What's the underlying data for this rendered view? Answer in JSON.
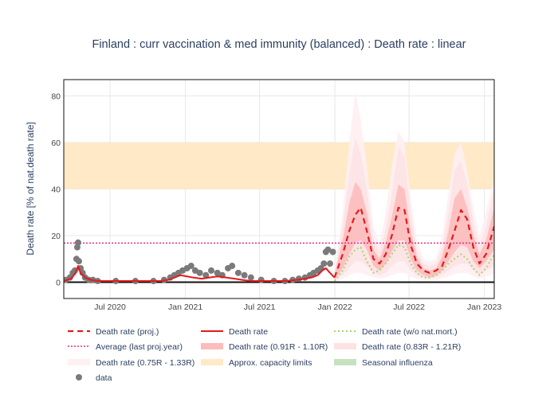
{
  "chart_data": {
    "type": "line",
    "title": "Finland : curr vaccination & med immunity (balanced) : Death rate : linear",
    "ylabel": "Death rate [% of nat.death rate]",
    "xlabel": "",
    "x_range": [
      "2020-03-10",
      "2023-01-25"
    ],
    "ylim": [
      -7,
      87
    ],
    "x_ticks": [
      {
        "date": "2020-07-01",
        "label": "Jul 2020"
      },
      {
        "date": "2021-01-01",
        "label": "Jan 2021"
      },
      {
        "date": "2021-07-01",
        "label": "Jul 2021"
      },
      {
        "date": "2022-01-01",
        "label": "Jan 2022"
      },
      {
        "date": "2022-07-01",
        "label": "Jul 2022"
      },
      {
        "date": "2023-01-01",
        "label": "Jan 2023"
      }
    ],
    "y_ticks": [
      0,
      20,
      40,
      60,
      80
    ],
    "grid": true,
    "legend_position": "bottom",
    "capacity_band": [
      40,
      60
    ],
    "average_last_proj_year": 16.8,
    "projection_start": "2021-12-31",
    "colors": {
      "proj": "#e41a1c",
      "death_rate": "#e41a1c",
      "wo_natmort": "#a6d96a",
      "average": "#e7298a",
      "band_a": "#fdbbbb",
      "band_b": "#fde2e4",
      "band_c": "#fff0f2",
      "capacity": "#ffe9c7",
      "seasonal_flu": "#c6e2bf",
      "data": "#7a7a7a"
    },
    "series": {
      "death_rate": {
        "name": "Death rate",
        "x": [
          "2020-03-10",
          "2020-03-28",
          "2020-04-08",
          "2020-04-14",
          "2020-04-20",
          "2020-05-01",
          "2020-05-15",
          "2020-06-01",
          "2020-07-01",
          "2020-09-01",
          "2020-11-01",
          "2020-11-20",
          "2020-12-05",
          "2020-12-20",
          "2021-01-05",
          "2021-01-20",
          "2021-02-10",
          "2021-03-01",
          "2021-03-20",
          "2021-04-10",
          "2021-05-01",
          "2021-05-20",
          "2021-06-10",
          "2021-07-01",
          "2021-08-01",
          "2021-09-01",
          "2021-10-01",
          "2021-10-20",
          "2021-11-05",
          "2021-11-20",
          "2021-12-01",
          "2021-12-10",
          "2021-12-20",
          "2021-12-31"
        ],
        "y": [
          0.5,
          1.5,
          4,
          7,
          4,
          2,
          1,
          0.5,
          0.5,
          0.5,
          0.5,
          1,
          2,
          3,
          2.5,
          2,
          1.5,
          2,
          2.5,
          2,
          1.5,
          1,
          0.5,
          0.5,
          0.5,
          0.5,
          1,
          1.5,
          2,
          3,
          5,
          6,
          4,
          2
        ]
      },
      "data_points": {
        "name": "data",
        "x": [
          "2020-03-15",
          "2020-03-25",
          "2020-04-01",
          "2020-04-06",
          "2020-04-10",
          "2020-04-12",
          "2020-04-14",
          "2020-04-16",
          "2020-04-20",
          "2020-04-25",
          "2020-05-01",
          "2020-05-10",
          "2020-05-20",
          "2020-06-01",
          "2020-07-15",
          "2020-09-01",
          "2020-10-15",
          "2020-11-10",
          "2020-11-25",
          "2020-12-05",
          "2020-12-15",
          "2020-12-25",
          "2021-01-05",
          "2021-01-15",
          "2021-01-25",
          "2021-02-05",
          "2021-02-20",
          "2021-03-05",
          "2021-03-20",
          "2021-04-01",
          "2021-04-15",
          "2021-04-25",
          "2021-05-10",
          "2021-05-25",
          "2021-06-10",
          "2021-07-05",
          "2021-08-05",
          "2021-09-01",
          "2021-09-20",
          "2021-10-05",
          "2021-10-20",
          "2021-11-01",
          "2021-11-10",
          "2021-11-20",
          "2021-11-28",
          "2021-12-05",
          "2021-12-10",
          "2021-12-15",
          "2021-12-20",
          "2021-12-27"
        ],
        "y": [
          1,
          2,
          4,
          5,
          10,
          15,
          17,
          9,
          6,
          4,
          2,
          1,
          1,
          0.5,
          0.5,
          0.5,
          0.5,
          1,
          2,
          3,
          4,
          5,
          6,
          7,
          5,
          4,
          3,
          5,
          4,
          3,
          6,
          7,
          4,
          3,
          2,
          1,
          0.5,
          0.5,
          1,
          1.5,
          2,
          3,
          4,
          5,
          6,
          8,
          13,
          14,
          8,
          13
        ]
      },
      "proj": {
        "name": "Death rate (proj.)",
        "x": [
          "2021-12-31",
          "2022-01-20",
          "2022-02-05",
          "2022-02-20",
          "2022-03-05",
          "2022-03-20",
          "2022-04-05",
          "2022-04-20",
          "2022-05-05",
          "2022-05-20",
          "2022-06-05",
          "2022-06-20",
          "2022-07-05",
          "2022-07-20",
          "2022-08-05",
          "2022-08-20",
          "2022-09-05",
          "2022-09-20",
          "2022-10-05",
          "2022-10-20",
          "2022-11-05",
          "2022-11-20",
          "2022-12-05",
          "2022-12-20",
          "2023-01-05",
          "2023-01-25"
        ],
        "y": [
          2,
          12,
          22,
          29,
          32,
          22,
          10,
          8,
          12,
          20,
          32,
          31,
          16,
          8,
          5,
          4,
          5,
          7,
          14,
          22,
          31,
          27,
          15,
          8,
          12,
          24
        ]
      },
      "wo_natmort": {
        "name": "Death rate (w/o nat.mort.)",
        "x": [
          "2021-12-31",
          "2022-01-20",
          "2022-02-05",
          "2022-02-20",
          "2022-03-05",
          "2022-03-20",
          "2022-04-05",
          "2022-04-20",
          "2022-05-05",
          "2022-05-20",
          "2022-06-05",
          "2022-06-20",
          "2022-07-05",
          "2022-07-20",
          "2022-08-05",
          "2022-08-20",
          "2022-09-05",
          "2022-09-20",
          "2022-10-05",
          "2022-10-20",
          "2022-11-05",
          "2022-11-20",
          "2022-12-05",
          "2022-12-20",
          "2023-01-05",
          "2023-01-25"
        ],
        "y": [
          0.5,
          5,
          11,
          14,
          15,
          9,
          4,
          5,
          8,
          12,
          16,
          15,
          8,
          4,
          2,
          2,
          3,
          5,
          8,
          10,
          12,
          10,
          6,
          3,
          6,
          12
        ]
      },
      "band_a": {
        "name": "Death rate (0.91R - 1.10R)",
        "x": [
          "2021-12-31",
          "2022-01-20",
          "2022-02-05",
          "2022-02-20",
          "2022-03-05",
          "2022-03-20",
          "2022-04-05",
          "2022-04-20",
          "2022-05-05",
          "2022-05-20",
          "2022-06-05",
          "2022-06-20",
          "2022-07-05",
          "2022-07-20",
          "2022-08-05",
          "2022-08-20",
          "2022-09-05",
          "2022-09-20",
          "2022-10-05",
          "2022-10-20",
          "2022-11-05",
          "2022-11-20",
          "2022-12-05",
          "2022-12-20",
          "2023-01-05",
          "2023-01-25"
        ],
        "lower": [
          1,
          6,
          12,
          17,
          18,
          14,
          7,
          5,
          8,
          13,
          18,
          18,
          10,
          5,
          3,
          2,
          3,
          5,
          9,
          13,
          16,
          15,
          9,
          6,
          9,
          14
        ],
        "upper": [
          3,
          18,
          34,
          43,
          40,
          30,
          14,
          10,
          17,
          28,
          42,
          40,
          22,
          11,
          6,
          5,
          6,
          11,
          22,
          36,
          40,
          32,
          20,
          12,
          18,
          32
        ]
      },
      "band_b": {
        "name": "Death rate (0.83R - 1.21R)",
        "x": [
          "2021-12-31",
          "2022-01-20",
          "2022-02-05",
          "2022-02-20",
          "2022-03-05",
          "2022-03-20",
          "2022-04-05",
          "2022-04-20",
          "2022-05-05",
          "2022-05-20",
          "2022-06-05",
          "2022-06-20",
          "2022-07-05",
          "2022-07-20",
          "2022-08-05",
          "2022-08-20",
          "2022-09-05",
          "2022-09-20",
          "2022-10-05",
          "2022-10-20",
          "2022-11-05",
          "2022-11-20",
          "2022-12-05",
          "2022-12-20",
          "2023-01-05",
          "2023-01-25"
        ],
        "lower": [
          0.5,
          3,
          6,
          9,
          9,
          7,
          4,
          3,
          4,
          7,
          9,
          9,
          5,
          3,
          2,
          1.5,
          2,
          3,
          5,
          7,
          8,
          8,
          5,
          3,
          5,
          7
        ],
        "upper": [
          4,
          24,
          46,
          62,
          55,
          40,
          18,
          13,
          23,
          38,
          58,
          54,
          30,
          14,
          8,
          7,
          8,
          15,
          30,
          48,
          52,
          42,
          26,
          15,
          24,
          40
        ]
      },
      "band_c": {
        "name": "Death rate (0.75R - 1.33R)",
        "x": [
          "2021-12-31",
          "2022-01-20",
          "2022-02-05",
          "2022-02-20",
          "2022-03-05",
          "2022-03-20",
          "2022-04-05",
          "2022-04-20",
          "2022-05-05",
          "2022-05-20",
          "2022-06-05",
          "2022-06-20",
          "2022-07-05",
          "2022-07-20",
          "2022-08-05",
          "2022-08-20",
          "2022-09-05",
          "2022-09-20",
          "2022-10-05",
          "2022-10-20",
          "2022-11-05",
          "2022-11-20",
          "2022-12-05",
          "2022-12-20",
          "2023-01-05",
          "2023-01-25"
        ],
        "lower": [
          0.2,
          1.5,
          3,
          4,
          4,
          3,
          2,
          1.5,
          2,
          3,
          4,
          4,
          2.5,
          1.5,
          1,
          1,
          1,
          1.5,
          2.5,
          3.5,
          4,
          4,
          2.5,
          1.5,
          2.5,
          3.5
        ],
        "upper": [
          5,
          30,
          60,
          82,
          70,
          50,
          24,
          17,
          30,
          50,
          65,
          60,
          36,
          18,
          10,
          9,
          10,
          20,
          38,
          55,
          60,
          48,
          32,
          20,
          30,
          45
        ]
      }
    },
    "legend": [
      {
        "key": "proj",
        "label": "Death rate (proj.)",
        "style": "dash-red"
      },
      {
        "key": "death_rate",
        "label": "Death rate",
        "style": "solid-red"
      },
      {
        "key": "wo_natmort",
        "label": "Death rate (w/o nat.mort.)",
        "style": "dot-green"
      },
      {
        "key": "average",
        "label": "Average (last proj.year)",
        "style": "dot-pink"
      },
      {
        "key": "band_a",
        "label": "Death rate (0.91R - 1.10R)",
        "style": "band_a"
      },
      {
        "key": "band_b",
        "label": "Death rate (0.83R - 1.21R)",
        "style": "band_b"
      },
      {
        "key": "band_c",
        "label": "Death rate (0.75R - 1.33R)",
        "style": "band_c"
      },
      {
        "key": "capacity",
        "label": "Approx. capacity limits",
        "style": "capacity"
      },
      {
        "key": "seasonal_flu",
        "label": "Seasonal influenza",
        "style": "seasonal_flu"
      },
      {
        "key": "data",
        "label": "data",
        "style": "marker"
      }
    ]
  }
}
